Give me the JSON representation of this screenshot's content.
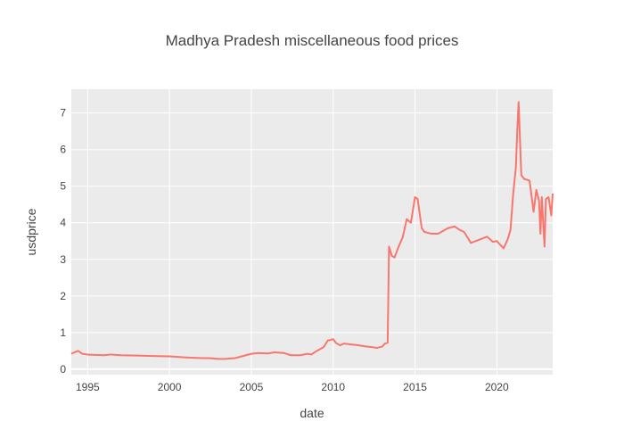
{
  "chart_data": {
    "type": "line",
    "title": "Madhya Pradesh miscellaneous food prices",
    "xlabel": "date",
    "ylabel": "usdprice",
    "xlim": [
      "1994-01-01",
      "2023-06-01"
    ],
    "ylim": [
      -0.15,
      7.65
    ],
    "x_ticks": [
      "1995",
      "2000",
      "2005",
      "2010",
      "2015",
      "2020"
    ],
    "y_ticks": [
      0,
      1,
      2,
      3,
      4,
      5,
      6,
      7
    ],
    "grid": true,
    "colors": {
      "plot_bg": "#EBEBEB",
      "grid": "#FFFFFF",
      "line": "#F8766D"
    },
    "series": [
      {
        "x": [
          "1994-01-01",
          "1994-06-01",
          "1994-09-01",
          "1995-01-01",
          "1995-06-01",
          "1996-01-01",
          "1996-06-01",
          "1997-01-01",
          "1998-01-01",
          "1999-01-01",
          "2000-01-01",
          "2001-01-01",
          "2002-01-01",
          "2002-06-01",
          "2003-01-01",
          "2003-06-01",
          "2004-01-01",
          "2004-06-01",
          "2005-01-01",
          "2005-06-01",
          "2006-01-01",
          "2006-06-01",
          "2007-01-01",
          "2007-06-01",
          "2008-01-01",
          "2008-06-01",
          "2008-09-01",
          "2009-01-01",
          "2009-06-01",
          "2009-09-01",
          "2010-01-01",
          "2010-03-01",
          "2010-06-01",
          "2010-09-01",
          "2011-01-01",
          "2011-06-01",
          "2012-01-01",
          "2012-06-01",
          "2012-09-01",
          "2013-01-01",
          "2013-03-01",
          "2013-05-01",
          "2013-06-01",
          "2013-08-01",
          "2013-10-01",
          "2014-01-01",
          "2014-04-01",
          "2014-07-01",
          "2014-10-01",
          "2015-01-01",
          "2015-03-01",
          "2015-06-01",
          "2015-08-01",
          "2016-01-01",
          "2016-06-01",
          "2017-01-01",
          "2017-06-01",
          "2017-10-01",
          "2018-01-01",
          "2018-06-01",
          "2019-01-01",
          "2019-06-01",
          "2019-10-01",
          "2020-01-01",
          "2020-06-01",
          "2020-09-01",
          "2020-11-01",
          "2021-01-01",
          "2021-03-01",
          "2021-04-01",
          "2021-05-01",
          "2021-07-01",
          "2021-09-01",
          "2022-01-01",
          "2022-04-01",
          "2022-06-01",
          "2022-08-01",
          "2022-09-01",
          "2022-10-01",
          "2022-12-01",
          "2023-01-01",
          "2023-03-01",
          "2023-05-01",
          "2023-06-01"
        ],
        "y": [
          0.42,
          0.5,
          0.42,
          0.4,
          0.39,
          0.38,
          0.4,
          0.38,
          0.37,
          0.36,
          0.35,
          0.32,
          0.3,
          0.3,
          0.28,
          0.28,
          0.3,
          0.35,
          0.42,
          0.44,
          0.43,
          0.46,
          0.44,
          0.38,
          0.38,
          0.42,
          0.4,
          0.5,
          0.6,
          0.78,
          0.82,
          0.72,
          0.65,
          0.7,
          0.68,
          0.66,
          0.62,
          0.6,
          0.58,
          0.62,
          0.7,
          0.72,
          3.35,
          3.1,
          3.05,
          3.35,
          3.6,
          4.1,
          4.0,
          4.7,
          4.65,
          3.85,
          3.75,
          3.7,
          3.7,
          3.85,
          3.9,
          3.8,
          3.75,
          3.45,
          3.55,
          3.62,
          3.48,
          3.5,
          3.3,
          3.55,
          3.8,
          4.8,
          5.5,
          6.5,
          7.3,
          5.3,
          5.2,
          5.15,
          4.3,
          4.9,
          4.6,
          3.7,
          4.7,
          3.35,
          4.65,
          4.7,
          4.2,
          4.8
        ]
      }
    ]
  }
}
